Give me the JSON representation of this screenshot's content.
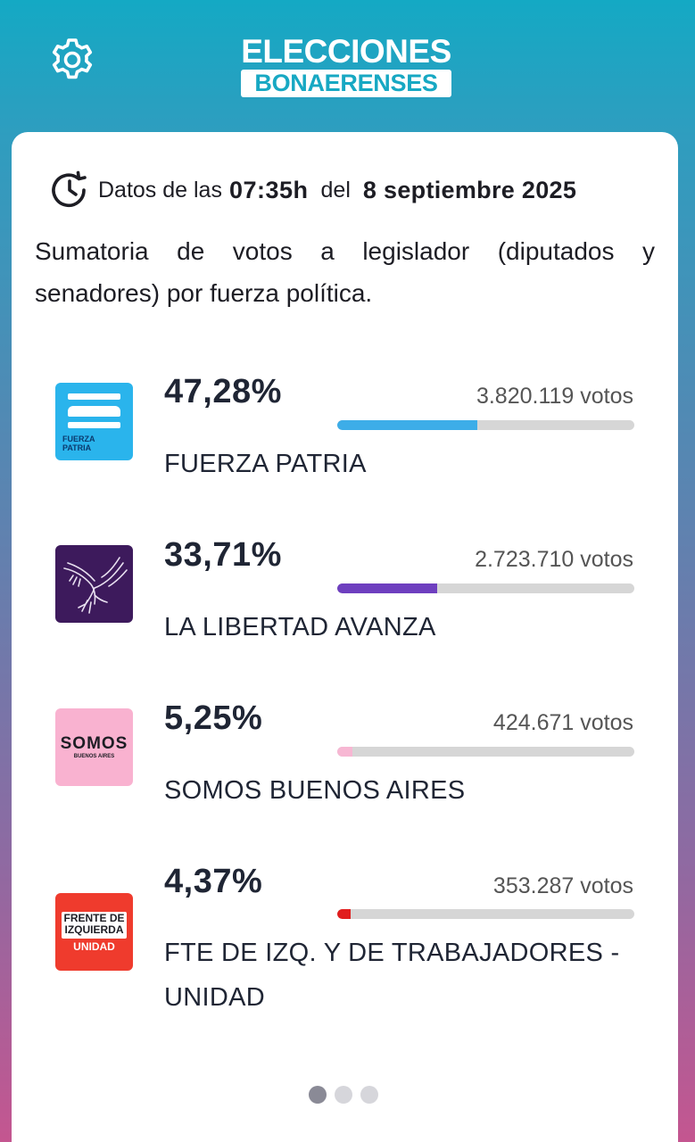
{
  "header": {
    "logo_line1": "ELECCIONES",
    "logo_line2": "BONAERENSES",
    "settings_icon": "gear-icon"
  },
  "timestamp": {
    "icon": "clock-history-icon",
    "prefix": "Datos de las",
    "time": "07:35h",
    "mid": "del",
    "date": "8 septiembre 2025"
  },
  "description": "Sumatoria de votos a legislador (diputados y senadores) por fuerza política.",
  "parties": [
    {
      "name": "FUERZA PATRIA",
      "percent": "47,28%",
      "votes": "3.820.119 votos",
      "share": 0.4728,
      "bar_color": "#3dade8",
      "logo_text": "FUERZA PATRIA",
      "logo_bg": "#2ab4ec"
    },
    {
      "name": "LA LIBERTAD AVANZA",
      "percent": "33,71%",
      "votes": "2.723.710 votos",
      "share": 0.3371,
      "bar_color": "#6e3fbf",
      "logo_bg": "#3d1a5c"
    },
    {
      "name": "SOMOS BUENOS AIRES",
      "percent": "5,25%",
      "votes": "424.671 votos",
      "share": 0.0525,
      "bar_color": "#f7b7d3",
      "logo_text": "SOMOS",
      "logo_subtext": "BUENOS AIRES",
      "logo_bg": "#f9b2d0"
    },
    {
      "name": "FTE DE IZQ. Y DE TRABAJADORES - UNIDAD",
      "percent": "4,37%",
      "votes": "353.287 votos",
      "share": 0.0437,
      "bar_color": "#e11d1d",
      "logo_text_1": "FRENTE DE",
      "logo_text_2": "IZQUIERDA",
      "logo_text_3": "UNIDAD",
      "logo_bg": "#ef3b2d"
    }
  ],
  "pagination": {
    "pages": 3,
    "active": 0
  }
}
